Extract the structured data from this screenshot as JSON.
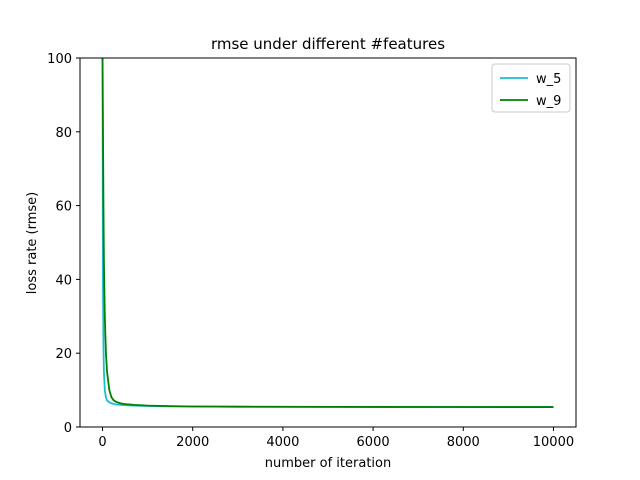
{
  "chart_data": {
    "type": "line",
    "title": "rmse under different #features",
    "xlabel": "number of iteration",
    "ylabel": "loss rate (rmse)",
    "xlim": [
      -500,
      10500
    ],
    "ylim": [
      0,
      100
    ],
    "xticks": [
      0,
      2000,
      4000,
      6000,
      8000,
      10000
    ],
    "yticks": [
      0,
      20,
      40,
      60,
      80,
      100
    ],
    "grid": false,
    "legend_position": "top-right",
    "series": [
      {
        "name": "w_5",
        "color": "#17becf",
        "x": [
          0,
          5,
          10,
          20,
          30,
          50,
          75,
          100,
          150,
          200,
          300,
          400,
          500,
          700,
          1000,
          1500,
          2000,
          3000,
          5000,
          7500,
          10000
        ],
        "y": [
          100,
          60,
          38,
          22,
          15,
          10,
          8,
          7.2,
          6.7,
          6.4,
          6.1,
          6.0,
          5.9,
          5.8,
          5.7,
          5.6,
          5.55,
          5.5,
          5.45,
          5.42,
          5.4
        ]
      },
      {
        "name": "w_9",
        "color": "#008000",
        "x": [
          0,
          10,
          20,
          30,
          50,
          75,
          100,
          150,
          200,
          250,
          300,
          400,
          500,
          700,
          1000,
          1500,
          2000,
          3000,
          5000,
          7500,
          10000
        ],
        "y": [
          100,
          80,
          60,
          45,
          30,
          20,
          15,
          10,
          8,
          7.2,
          6.8,
          6.4,
          6.2,
          6.0,
          5.8,
          5.65,
          5.55,
          5.5,
          5.45,
          5.42,
          5.4
        ]
      }
    ]
  }
}
